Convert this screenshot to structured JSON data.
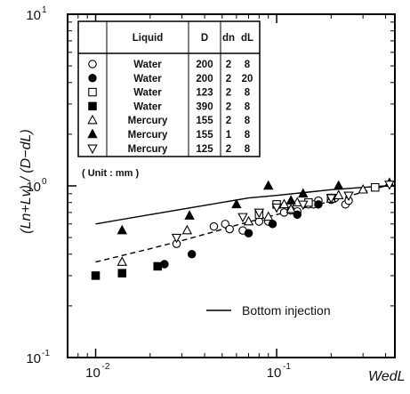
{
  "chart_data": {
    "type": "scatter",
    "x_scale": "log",
    "y_scale": "log",
    "xlim": [
      0.007,
      0.45
    ],
    "ylim": [
      0.1,
      10
    ],
    "y_ticks": [
      {
        "base": "10",
        "exp": "1",
        "value": 10
      },
      {
        "base": "10",
        "exp": "0",
        "value": 1
      },
      {
        "base": "10",
        "exp": "-1",
        "value": 0.1
      }
    ],
    "x_ticks": [
      {
        "base": "10",
        "exp": "-2",
        "value": 0.01
      },
      {
        "base": "10",
        "exp": "-1",
        "value": 0.1
      }
    ],
    "ylabel": "(Ln+Lv) / (D−dL)",
    "xlabel": "WedL",
    "legend_table": {
      "headers": [
        "Liquid",
        "D",
        "dn",
        "dL"
      ],
      "rows": [
        {
          "marker": "open-circle",
          "liquid": "Water",
          "D": "200",
          "dn": "2",
          "dL": "8"
        },
        {
          "marker": "filled-circle",
          "liquid": "Water",
          "D": "200",
          "dn": "2",
          "dL": "20"
        },
        {
          "marker": "open-square",
          "liquid": "Water",
          "D": "123",
          "dn": "2",
          "dL": "8"
        },
        {
          "marker": "filled-square",
          "liquid": "Water",
          "D": "390",
          "dn": "2",
          "dL": "8"
        },
        {
          "marker": "open-triangle-up",
          "liquid": "Mercury",
          "D": "155",
          "dn": "2",
          "dL": "8"
        },
        {
          "marker": "filled-triangle-up",
          "liquid": "Mercury",
          "D": "155",
          "dn": "1",
          "dL": "8"
        },
        {
          "marker": "open-triangle-down",
          "liquid": "Mercury",
          "D": "125",
          "dn": "2",
          "dL": "8"
        }
      ]
    },
    "unit_note": "( Unit : mm )",
    "lines": [
      {
        "name": "Bottom injection",
        "style": "solid",
        "x": [
          0.01,
          0.02,
          0.04,
          0.07,
          0.1,
          0.15,
          0.2,
          0.3,
          0.4
        ],
        "y": [
          0.6,
          0.68,
          0.77,
          0.85,
          0.88,
          0.92,
          0.95,
          0.98,
          1.0
        ]
      },
      {
        "name": "",
        "style": "dashed",
        "x": [
          0.01,
          0.015,
          0.02,
          0.03,
          0.045,
          0.06,
          0.08,
          0.1,
          0.13,
          0.17,
          0.22,
          0.3,
          0.4
        ],
        "y": [
          0.36,
          0.4,
          0.43,
          0.48,
          0.54,
          0.59,
          0.64,
          0.68,
          0.73,
          0.78,
          0.84,
          0.92,
          1.0
        ]
      }
    ],
    "series": [
      {
        "marker": "open-circle",
        "points": [
          [
            0.028,
            0.46
          ],
          [
            0.045,
            0.58
          ],
          [
            0.052,
            0.6
          ],
          [
            0.055,
            0.56
          ],
          [
            0.065,
            0.55
          ],
          [
            0.08,
            0.62
          ],
          [
            0.09,
            0.62
          ],
          [
            0.11,
            0.7
          ],
          [
            0.12,
            0.72
          ],
          [
            0.13,
            0.71
          ],
          [
            0.15,
            0.78
          ],
          [
            0.16,
            0.78
          ],
          [
            0.17,
            0.82
          ],
          [
            0.2,
            0.83
          ],
          [
            0.21,
            0.85
          ],
          [
            0.24,
            0.78
          ],
          [
            0.25,
            0.82
          ]
        ]
      },
      {
        "marker": "filled-circle",
        "points": [
          [
            0.024,
            0.35
          ],
          [
            0.034,
            0.4
          ],
          [
            0.07,
            0.53
          ],
          [
            0.095,
            0.6
          ],
          [
            0.13,
            0.68
          ],
          [
            0.17,
            0.78
          ]
        ]
      },
      {
        "marker": "open-square",
        "points": [
          [
            0.08,
            0.68
          ],
          [
            0.1,
            0.78
          ],
          [
            0.15,
            0.8
          ],
          [
            0.2,
            0.85
          ],
          [
            0.35,
            0.98
          ]
        ]
      },
      {
        "marker": "filled-square",
        "points": [
          [
            0.01,
            0.3
          ],
          [
            0.014,
            0.31
          ],
          [
            0.022,
            0.34
          ]
        ]
      },
      {
        "marker": "open-triangle-up",
        "points": [
          [
            0.014,
            0.36
          ],
          [
            0.032,
            0.55
          ],
          [
            0.07,
            0.62
          ],
          [
            0.09,
            0.66
          ],
          [
            0.11,
            0.78
          ],
          [
            0.12,
            0.73
          ],
          [
            0.13,
            0.8
          ],
          [
            0.2,
            0.84
          ],
          [
            0.22,
            0.88
          ],
          [
            0.3,
            0.95
          ]
        ]
      },
      {
        "marker": "filled-triangle-up",
        "points": [
          [
            0.014,
            0.55
          ],
          [
            0.033,
            0.67
          ],
          [
            0.06,
            0.78
          ],
          [
            0.09,
            1.0
          ],
          [
            0.12,
            0.82
          ],
          [
            0.14,
            0.9
          ],
          [
            0.22,
            1.0
          ],
          [
            0.42,
            1.04
          ]
        ]
      },
      {
        "marker": "open-triangle-down",
        "points": [
          [
            0.028,
            0.5
          ],
          [
            0.065,
            0.66
          ],
          [
            0.08,
            0.7
          ],
          [
            0.1,
            0.75
          ],
          [
            0.14,
            0.78
          ],
          [
            0.2,
            0.85
          ],
          [
            0.25,
            0.88
          ],
          [
            0.42,
            1.02
          ]
        ]
      }
    ]
  }
}
